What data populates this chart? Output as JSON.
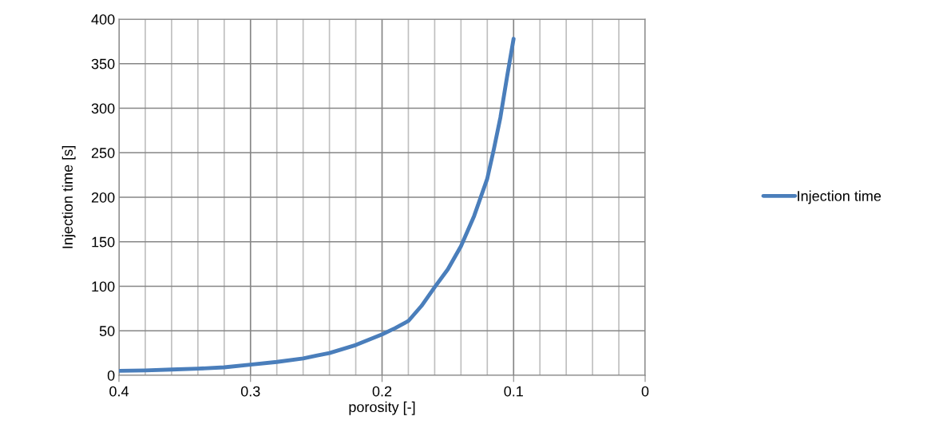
{
  "chart_data": {
    "type": "line",
    "xlabel": "porosity [-]",
    "ylabel": "Injection time [s]",
    "x": [
      0.4,
      0.38,
      0.36,
      0.34,
      0.32,
      0.3,
      0.28,
      0.26,
      0.25,
      0.24,
      0.22,
      0.2,
      0.19,
      0.18,
      0.17,
      0.16,
      0.15,
      0.14,
      0.13,
      0.12,
      0.115,
      0.11,
      0.105,
      0.1
    ],
    "series": [
      {
        "name": "Injection time",
        "color": "#4a7ebb",
        "values": [
          5,
          5.5,
          6.5,
          7.5,
          9,
          12,
          15,
          19,
          22,
          25,
          34,
          46,
          53,
          61,
          78,
          99,
          119,
          145,
          179,
          221,
          254,
          290,
          335,
          378
        ]
      }
    ],
    "xlim": [
      0.4,
      0
    ],
    "xticks": [
      0.4,
      0.3,
      0.2,
      0.1,
      0
    ],
    "ylim": [
      0,
      400
    ],
    "yticks": [
      0,
      50,
      100,
      150,
      200,
      250,
      300,
      350,
      400
    ],
    "grid": true,
    "legend": "right",
    "marker": "none",
    "line_style": "solid"
  }
}
